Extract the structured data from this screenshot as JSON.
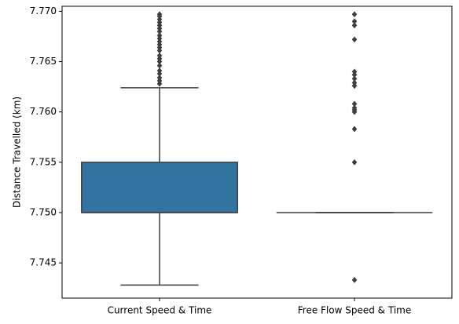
{
  "chart_data": {
    "type": "box",
    "title": "",
    "xlabel": "",
    "ylabel": "Distance Travelled (km)",
    "ylim": [
      7.7415,
      7.7705
    ],
    "yticks": [
      7.745,
      7.75,
      7.755,
      7.76,
      7.765,
      7.77
    ],
    "ytick_labels": [
      "7.745",
      "7.750",
      "7.755",
      "7.760",
      "7.765",
      "7.770"
    ],
    "categories": [
      "Current Speed & Time",
      "Free Flow Speed & Time"
    ],
    "grid": false,
    "colors": {
      "box_fill": "#3274a1",
      "line": "#3f3f3f",
      "outlier": "#3f3f3f"
    },
    "boxes": [
      {
        "category": "Current Speed & Time",
        "whisker_low": 7.7428,
        "q1": 7.75,
        "median": 7.75,
        "q3": 7.755,
        "whisker_high": 7.7624,
        "outliers": [
          7.7628,
          7.7631,
          7.7634,
          7.7638,
          7.7641,
          7.7646,
          7.765,
          7.7653,
          7.7656,
          7.7661,
          7.7664,
          7.7667,
          7.767,
          7.7673,
          7.7676,
          7.768,
          7.7683,
          7.7686,
          7.7689,
          7.7692,
          7.7695,
          7.7697
        ]
      },
      {
        "category": "Free Flow Speed & Time",
        "whisker_low": 7.75,
        "q1": 7.75,
        "median": 7.75,
        "q3": 7.75,
        "whisker_high": 7.75,
        "outliers": [
          7.7433,
          7.755,
          7.7583,
          7.76,
          7.7602,
          7.7604,
          7.7608,
          7.7626,
          7.7629,
          7.7633,
          7.7637,
          7.764,
          7.7672,
          7.7686,
          7.769,
          7.7697
        ]
      }
    ]
  }
}
